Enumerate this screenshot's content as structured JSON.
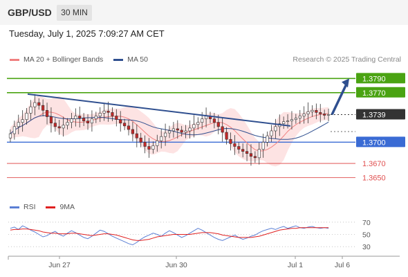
{
  "header": {
    "symbol": "GBP/USD",
    "timeframe": "30 MIN"
  },
  "timestamp": "Tuesday, July 1, 2025 7:09:27 AM CET",
  "copyright": "Research © 2025 Trading Central",
  "legend_main": [
    {
      "label": "MA 20 + Bollinger Bands",
      "color": "#f08080"
    },
    {
      "label": "MA 50",
      "color": "#2f4f8f"
    }
  ],
  "legend_rsi": [
    {
      "label": "RSI",
      "color": "#5b7fd4"
    },
    {
      "label": "9MA",
      "color": "#e02020"
    }
  ],
  "colors": {
    "resistance": "#4aa312",
    "support_blue": "#3a6bd4",
    "support_red": "#e05050",
    "candle_up": "#ffffff",
    "candle_down": "#c62828",
    "trendline": "#2f4f8f",
    "band_fill": "#fde0e0",
    "current": "#333333"
  },
  "chart_data": [
    {
      "type": "candlestick",
      "ylim": [
        1.3625,
        1.3805
      ],
      "x_labels": [
        "Jun 27",
        "Jun 30",
        "Jul 1",
        "Jul 6"
      ],
      "levels": [
        {
          "label": "1.3790",
          "value": 1.379,
          "kind": "resistance"
        },
        {
          "label": "1.3770",
          "value": 1.377,
          "kind": "resistance"
        },
        {
          "label": "1.3739",
          "value": 1.3739,
          "kind": "current"
        },
        {
          "label": "1.3700",
          "value": 1.37,
          "kind": "support_blue"
        },
        {
          "label": "1.3670",
          "value": 1.367,
          "kind": "support_red"
        },
        {
          "label": "1.3650",
          "value": 1.365,
          "kind": "support_red"
        }
      ],
      "closes": [
        1.3712,
        1.3722,
        1.3728,
        1.3732,
        1.3741,
        1.375,
        1.3756,
        1.3752,
        1.3745,
        1.3736,
        1.3727,
        1.3722,
        1.372,
        1.3724,
        1.3728,
        1.3733,
        1.3737,
        1.3734,
        1.373,
        1.3727,
        1.3733,
        1.3737,
        1.3741,
        1.3744,
        1.3742,
        1.3737,
        1.3732,
        1.3727,
        1.3723,
        1.3718,
        1.3712,
        1.3706,
        1.37,
        1.3694,
        1.369,
        1.3695,
        1.3702,
        1.3708,
        1.3713,
        1.3716,
        1.3719,
        1.3717,
        1.3714,
        1.3716,
        1.372,
        1.3725,
        1.3728,
        1.3733,
        1.3737,
        1.3733,
        1.3728,
        1.3722,
        1.3714,
        1.3704,
        1.3698,
        1.3694,
        1.369,
        1.3687,
        1.3684,
        1.368,
        1.3678,
        1.369,
        1.37,
        1.3709,
        1.3716,
        1.3722,
        1.3726,
        1.3729,
        1.373,
        1.3732,
        1.3734,
        1.3737,
        1.374,
        1.3743,
        1.3745,
        1.3742,
        1.374,
        1.3738,
        1.3739
      ],
      "ma20_end": 1.372,
      "ma50_end": 1.3715,
      "trendline": {
        "from_value": 1.3768,
        "to_value": 1.3723
      },
      "projection_to": 1.379
    },
    {
      "type": "line",
      "name": "RSI",
      "ylim": [
        20,
        80
      ],
      "y_ticks": [
        70,
        50,
        30
      ],
      "rsi": [
        60,
        62,
        58,
        64,
        61,
        57,
        54,
        50,
        46,
        48,
        52,
        55,
        50,
        47,
        52,
        56,
        53,
        49,
        45,
        43,
        47,
        52,
        57,
        55,
        51,
        47,
        44,
        41,
        38,
        35,
        33,
        37,
        42,
        46,
        49,
        52,
        50,
        47,
        52,
        56,
        53,
        49,
        45,
        48,
        52,
        56,
        60,
        57,
        53,
        49,
        45,
        42,
        40,
        43,
        46,
        49,
        45,
        42,
        44,
        47,
        49,
        53,
        56,
        58,
        60,
        58,
        61,
        63,
        60,
        62,
        64,
        61,
        60,
        62,
        63,
        61,
        60,
        61,
        60
      ],
      "ma9": [
        57,
        58,
        58,
        59,
        59,
        58,
        57,
        56,
        54,
        53,
        52,
        52,
        51,
        51,
        51,
        52,
        52,
        51,
        50,
        49,
        48,
        49,
        50,
        51,
        51,
        50,
        49,
        47,
        45,
        43,
        41,
        40,
        40,
        41,
        42,
        44,
        46,
        47,
        48,
        49,
        50,
        50,
        50,
        50,
        50,
        51,
        52,
        53,
        53,
        53,
        52,
        51,
        49,
        48,
        47,
        46,
        45,
        45,
        45,
        45,
        46,
        47,
        49,
        51,
        53,
        55,
        57,
        58,
        59,
        60,
        60,
        61,
        61,
        61,
        61,
        61,
        61,
        61,
        61
      ]
    }
  ]
}
